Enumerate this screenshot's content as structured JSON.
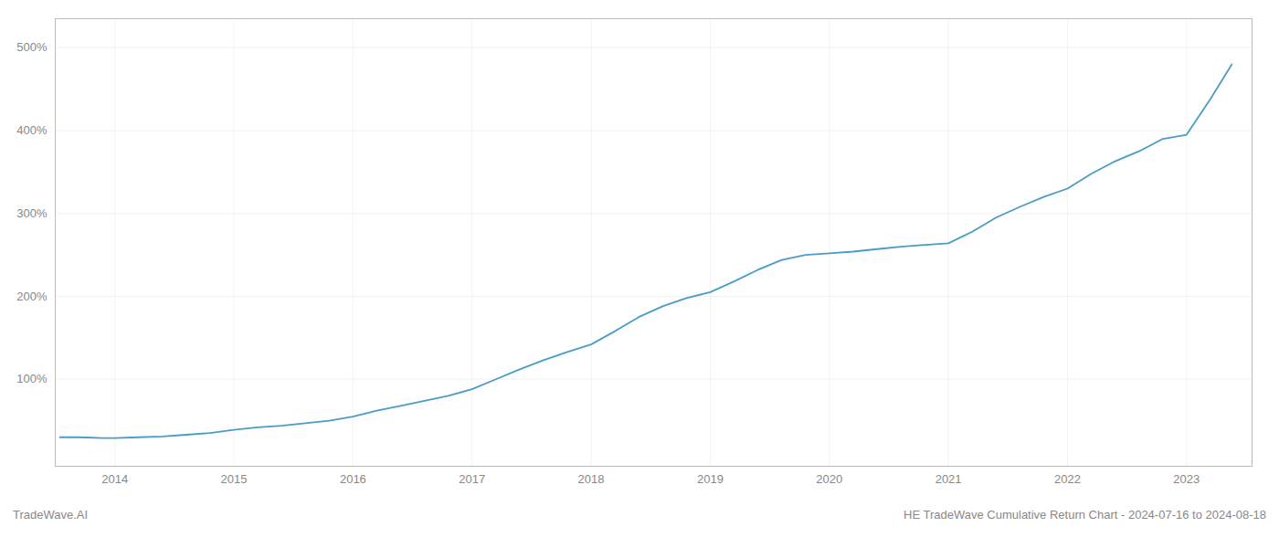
{
  "chart_data": {
    "type": "line",
    "title": "HE TradeWave Cumulative Return Chart - 2024-07-16 to 2024-08-18",
    "annotations": [
      "TradeWave.AI"
    ],
    "color": "#4a9cc7",
    "grid": true,
    "x": [
      2013.54,
      2013.7,
      2013.9,
      2014.0,
      2014.2,
      2014.4,
      2014.6,
      2014.8,
      2015.0,
      2015.2,
      2015.4,
      2015.6,
      2015.8,
      2016.0,
      2016.2,
      2016.4,
      2016.6,
      2016.8,
      2017.0,
      2017.2,
      2017.4,
      2017.6,
      2017.8,
      2018.0,
      2018.2,
      2018.4,
      2018.6,
      2018.8,
      2019.0,
      2019.2,
      2019.4,
      2019.6,
      2019.8,
      2020.0,
      2020.2,
      2020.4,
      2020.6,
      2020.8,
      2021.0,
      2021.2,
      2021.4,
      2021.6,
      2021.8,
      2022.0,
      2022.2,
      2022.4,
      2022.6,
      2022.8,
      2023.0,
      2023.2,
      2023.38
    ],
    "values": [
      30,
      30,
      29,
      29,
      30,
      31,
      33,
      35,
      39,
      42,
      44,
      47,
      50,
      55,
      62,
      68,
      74,
      80,
      88,
      100,
      112,
      123,
      133,
      142,
      158,
      175,
      188,
      198,
      205,
      218,
      232,
      244,
      250,
      252,
      254,
      257,
      260,
      262,
      264,
      278,
      295,
      308,
      320,
      330,
      348,
      363,
      375,
      390,
      395,
      438,
      480
    ],
    "xlim": [
      2013.5,
      2023.55
    ],
    "xticks": [
      2014,
      2015,
      2016,
      2017,
      2018,
      2019,
      2020,
      2021,
      2022,
      2023
    ],
    "ylim": [
      -5,
      535
    ],
    "yticks": [
      {
        "value": 100,
        "label": "100%"
      },
      {
        "value": 200,
        "label": "200%"
      },
      {
        "value": 300,
        "label": "300%"
      },
      {
        "value": 400,
        "label": "400%"
      },
      {
        "value": 500,
        "label": "500%"
      }
    ]
  }
}
